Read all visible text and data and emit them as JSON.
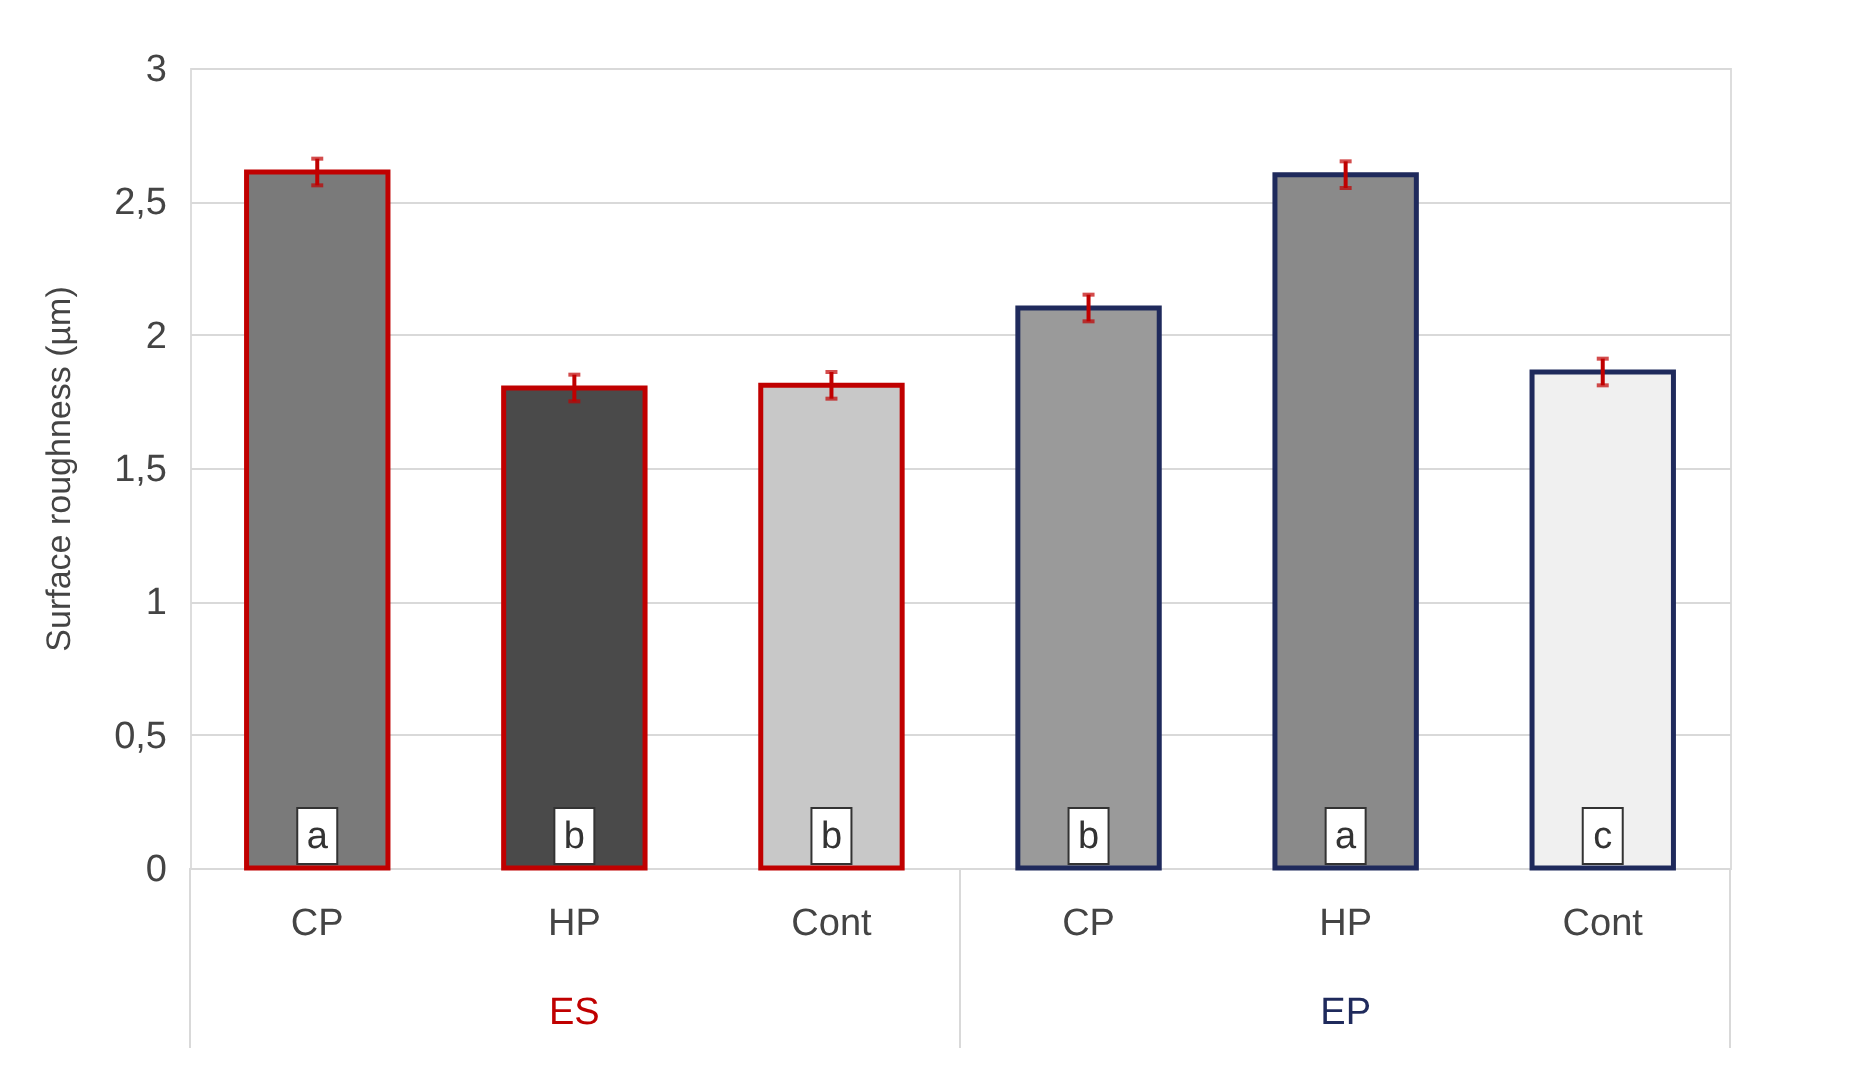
{
  "chart_data": {
    "type": "bar",
    "ylabel": "Surface roughness (µm)",
    "categories": [
      "CP",
      "HP",
      "Cont",
      "CP",
      "HP",
      "Cont"
    ],
    "series": [
      {
        "name": "ES",
        "color": "#c00000",
        "colors": [
          "#7a7a7a",
          "#4a4a4a",
          "#c8c8c8",
          null,
          null,
          null
        ],
        "values": [
          2.61,
          1.8,
          1.81,
          null,
          null,
          null
        ],
        "errors": [
          0.05,
          0.05,
          0.05,
          null,
          null,
          null
        ],
        "value_labels": [
          "a",
          "b",
          "b",
          null,
          null,
          null
        ]
      },
      {
        "name": "EP",
        "color": "#1f2a5c",
        "colors": [
          null,
          null,
          null,
          "#9a9a9a",
          "#8a8a8a",
          "#f0f0f0"
        ],
        "values": [
          null,
          null,
          null,
          2.1,
          2.6,
          1.86
        ],
        "errors": [
          null,
          null,
          null,
          0.05,
          0.05,
          0.05
        ],
        "value_labels": [
          null,
          null,
          null,
          "b",
          "a",
          "c"
        ]
      }
    ],
    "ylim": [
      0,
      3
    ],
    "yticks": [
      0,
      {
        "value": 0.5,
        "label": "0,5"
      },
      1,
      {
        "value": 1.5,
        "label": "1,5"
      },
      2,
      {
        "value": 2.5,
        "label": "2,5"
      },
      3
    ],
    "grid": "y"
  }
}
